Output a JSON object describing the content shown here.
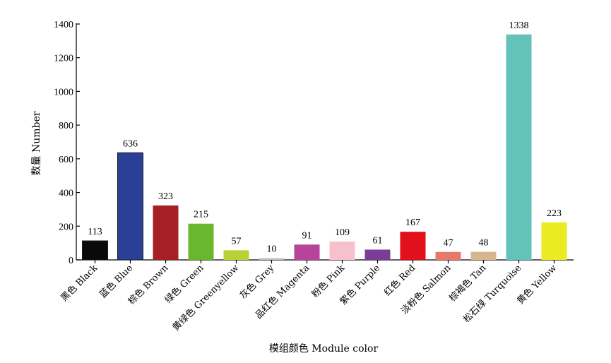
{
  "chart_data": {
    "type": "bar",
    "title": "",
    "xlabel": "模组颜色 Module color",
    "ylabel": "数量 Number",
    "ylim": [
      0,
      1400
    ],
    "yticks": [
      0,
      200,
      400,
      600,
      800,
      1000,
      1200,
      1400
    ],
    "grid": false,
    "categories": [
      "黑色 Black",
      "蓝色 Blue",
      "棕色 Brown",
      "绿色 Green",
      "黄绿色 Greenyellow",
      "灰色 Grey",
      "品红色 Magenta",
      "粉色 Pink",
      "紫色 Purple",
      "红色 Red",
      "淡粉色 Salmon",
      "棕褐色 Tan",
      "松石绿 Turquoise",
      "黄色 Yellow"
    ],
    "values": [
      113,
      636,
      323,
      215,
      57,
      10,
      91,
      109,
      61,
      167,
      47,
      48,
      1338,
      223
    ],
    "colors": [
      "#0a0a0a",
      "#2a3f96",
      "#a61f24",
      "#6ab72d",
      "#b5d335",
      "#bdbdbd",
      "#b5449a",
      "#f6c1cc",
      "#7a3d97",
      "#e2101a",
      "#e9786a",
      "#d6b58f",
      "#63c3bb",
      "#ecea22"
    ]
  }
}
